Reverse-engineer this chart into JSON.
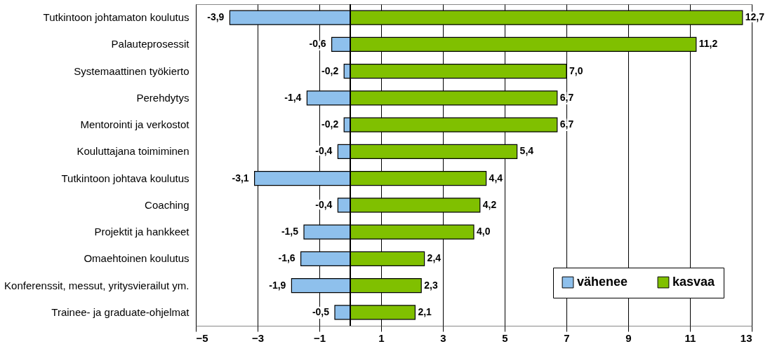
{
  "chart_data": {
    "type": "bar",
    "orientation": "horizontal",
    "stacked": true,
    "categories": [
      "Tutkintoon johtamaton koulutus",
      "Palauteprosessit",
      "Systemaattinen työkierto",
      "Perehdytys",
      "Mentorointi ja verkostot",
      "Kouluttajana toimiminen",
      "Tutkintoon johtava koulutus",
      "Coaching",
      "Projektit ja hankkeet",
      "Omaehtoinen koulutus",
      "Konferenssit, messut, yritysvierailut ym.",
      "Trainee- ja graduate-ohjelmat"
    ],
    "series": [
      {
        "name": "vähenee",
        "color": "#8ec0ec",
        "values": [
          -3.9,
          -0.6,
          -0.2,
          -1.4,
          -0.2,
          -0.4,
          -3.1,
          -0.4,
          -1.5,
          -1.6,
          -1.9,
          -0.5
        ],
        "value_labels": [
          "-3,9",
          "-0,6",
          "-0,2",
          "-1,4",
          "-0,2",
          "-0,4",
          "-3,1",
          "-0,4",
          "-1,5",
          "-1,6",
          "-1,9",
          "-0,5"
        ]
      },
      {
        "name": "kasvaa",
        "color": "#80c000",
        "values": [
          12.7,
          11.2,
          7.0,
          6.7,
          6.7,
          5.4,
          4.4,
          4.2,
          4.0,
          2.4,
          2.3,
          2.1
        ],
        "value_labels": [
          "12,7",
          "11,2",
          "7,0",
          "6,7",
          "6,7",
          "5,4",
          "4,4",
          "4,2",
          "4,0",
          "2,4",
          "2,3",
          "2,1"
        ]
      }
    ],
    "xlim": [
      -5,
      13
    ],
    "xticks": [
      -5,
      -3,
      -1,
      1,
      3,
      5,
      7,
      9,
      11,
      13
    ],
    "grid": "x",
    "legend": "bottom right"
  }
}
